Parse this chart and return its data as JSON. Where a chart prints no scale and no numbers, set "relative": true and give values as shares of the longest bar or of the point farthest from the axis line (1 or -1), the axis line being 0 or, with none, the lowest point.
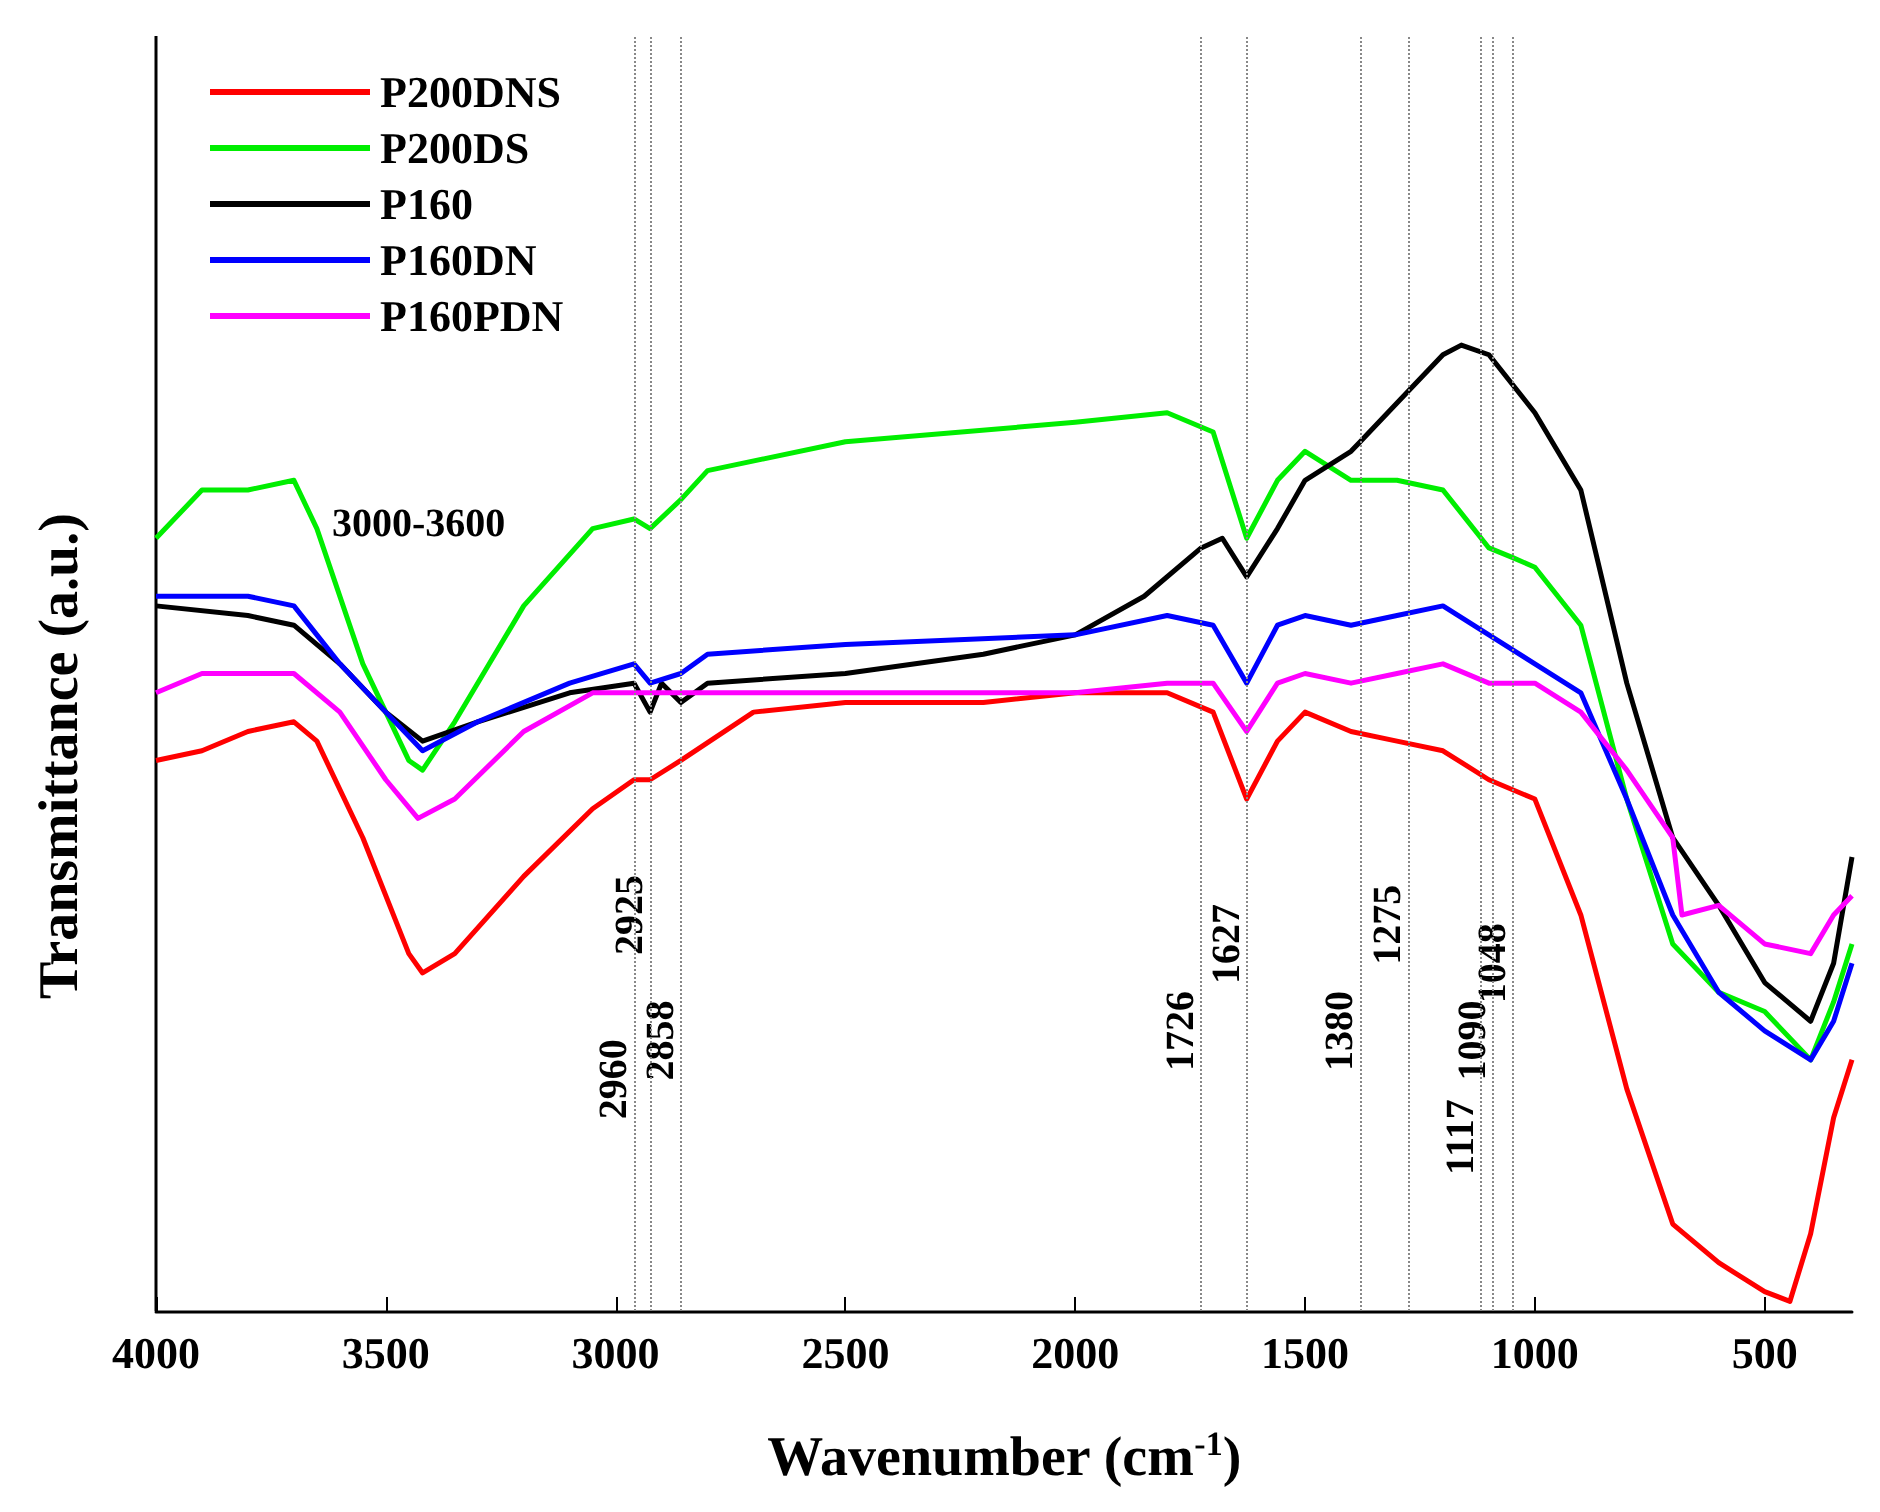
{
  "chart_data": {
    "type": "line",
    "relative": true,
    "xlabel": "Wavenumber (cm$^{-1}$)",
    "ylabel": "Transmittance (a.u.)",
    "xlim": [
      4000,
      310
    ],
    "xticks": [
      4000,
      3500,
      3000,
      2500,
      2000,
      1500,
      1000,
      500
    ],
    "legend": "top left",
    "grid": false,
    "marker": "none",
    "series": [
      {
        "name": "P200DNS",
        "color": "#ff0000",
        "x": [
          4000,
          3900,
          3800,
          3700,
          3650,
          3550,
          3450,
          3420,
          3350,
          3200,
          3050,
          2960,
          2925,
          2858,
          2700,
          2500,
          2200,
          2000,
          1800,
          1700,
          1627,
          1560,
          1500,
          1400,
          1300,
          1200,
          1100,
          1000,
          900,
          800,
          700,
          600,
          500,
          445,
          400,
          350,
          310
        ],
        "values": [
          0.57,
          0.58,
          0.6,
          0.61,
          0.59,
          0.49,
          0.37,
          0.35,
          0.37,
          0.45,
          0.52,
          0.55,
          0.55,
          0.57,
          0.62,
          0.63,
          0.63,
          0.64,
          0.64,
          0.62,
          0.53,
          0.59,
          0.62,
          0.6,
          0.59,
          0.58,
          0.55,
          0.53,
          0.41,
          0.23,
          0.09,
          0.05,
          0.02,
          0.01,
          0.08,
          0.2,
          0.26
        ]
      },
      {
        "name": "P200DS",
        "color": "#00ee00",
        "x": [
          4000,
          3900,
          3800,
          3700,
          3650,
          3550,
          3450,
          3420,
          3350,
          3200,
          3050,
          2960,
          2925,
          2858,
          2800,
          2500,
          2000,
          1800,
          1700,
          1627,
          1560,
          1500,
          1400,
          1300,
          1200,
          1100,
          1048,
          1000,
          900,
          800,
          700,
          600,
          500,
          400,
          350,
          310
        ],
        "values": [
          0.8,
          0.85,
          0.85,
          0.86,
          0.81,
          0.67,
          0.57,
          0.56,
          0.61,
          0.73,
          0.81,
          0.82,
          0.81,
          0.84,
          0.87,
          0.9,
          0.92,
          0.93,
          0.91,
          0.8,
          0.86,
          0.89,
          0.86,
          0.86,
          0.85,
          0.79,
          0.78,
          0.77,
          0.71,
          0.53,
          0.38,
          0.33,
          0.31,
          0.26,
          0.32,
          0.38
        ]
      },
      {
        "name": "P160",
        "color": "#000000",
        "x": [
          4000,
          3800,
          3700,
          3600,
          3500,
          3420,
          3300,
          3100,
          2960,
          2925,
          2900,
          2858,
          2800,
          2500,
          2200,
          2000,
          1850,
          1726,
          1680,
          1627,
          1560,
          1500,
          1400,
          1380,
          1300,
          1200,
          1160,
          1100,
          1000,
          900,
          800,
          700,
          600,
          500,
          400,
          350,
          310
        ],
        "values": [
          0.73,
          0.72,
          0.71,
          0.67,
          0.62,
          0.59,
          0.61,
          0.64,
          0.65,
          0.62,
          0.65,
          0.63,
          0.65,
          0.66,
          0.68,
          0.7,
          0.74,
          0.79,
          0.8,
          0.76,
          0.81,
          0.86,
          0.89,
          0.9,
          0.94,
          0.99,
          1,
          0.99,
          0.93,
          0.85,
          0.65,
          0.49,
          0.42,
          0.34,
          0.3,
          0.36,
          0.47
        ]
      },
      {
        "name": "P160DN",
        "color": "#0000ff",
        "x": [
          4000,
          3800,
          3700,
          3600,
          3500,
          3420,
          3300,
          3100,
          2960,
          2925,
          2858,
          2800,
          2500,
          2000,
          1800,
          1700,
          1627,
          1560,
          1500,
          1400,
          1300,
          1200,
          1100,
          1000,
          900,
          800,
          700,
          600,
          500,
          400,
          350,
          310
        ],
        "values": [
          0.74,
          0.74,
          0.73,
          0.67,
          0.62,
          0.58,
          0.61,
          0.65,
          0.67,
          0.65,
          0.66,
          0.68,
          0.69,
          0.7,
          0.72,
          0.71,
          0.65,
          0.71,
          0.72,
          0.71,
          0.72,
          0.73,
          0.7,
          0.67,
          0.64,
          0.53,
          0.41,
          0.33,
          0.29,
          0.26,
          0.3,
          0.36
        ]
      },
      {
        "name": "P160PDN",
        "color": "#ff00ff",
        "x": [
          4000,
          3900,
          3800,
          3700,
          3600,
          3500,
          3430,
          3350,
          3200,
          3050,
          2960,
          2800,
          2500,
          2000,
          1800,
          1700,
          1627,
          1560,
          1500,
          1400,
          1300,
          1200,
          1100,
          1000,
          900,
          800,
          700,
          680,
          600,
          500,
          400,
          350,
          310
        ],
        "values": [
          0.64,
          0.66,
          0.66,
          0.66,
          0.62,
          0.55,
          0.51,
          0.53,
          0.6,
          0.64,
          0.64,
          0.64,
          0.64,
          0.64,
          0.65,
          0.65,
          0.6,
          0.65,
          0.66,
          0.65,
          0.66,
          0.67,
          0.65,
          0.65,
          0.62,
          0.56,
          0.49,
          0.41,
          0.42,
          0.38,
          0.37,
          0.41,
          0.43
        ]
      }
    ],
    "ref_lines": [
      {
        "axis": "x",
        "value": 2960,
        "color": "#888888",
        "line_style": "dotted"
      },
      {
        "axis": "x",
        "value": 2925,
        "color": "#888888",
        "line_style": "dotted"
      },
      {
        "axis": "x",
        "value": 2858,
        "color": "#888888",
        "line_style": "dotted"
      },
      {
        "axis": "x",
        "value": 1726,
        "color": "#888888",
        "line_style": "dotted"
      },
      {
        "axis": "x",
        "value": 1627,
        "color": "#888888",
        "line_style": "dotted"
      },
      {
        "axis": "x",
        "value": 1380,
        "color": "#888888",
        "line_style": "dotted"
      },
      {
        "axis": "x",
        "value": 1275,
        "color": "#888888",
        "line_style": "dotted"
      },
      {
        "axis": "x",
        "value": 1117,
        "color": "#888888",
        "line_style": "dotted"
      },
      {
        "axis": "x",
        "value": 1090,
        "color": "#888888",
        "line_style": "dotted"
      },
      {
        "axis": "x",
        "value": 1048,
        "color": "#888888",
        "line_style": "dotted"
      }
    ],
    "annotations": [
      "3000-3600",
      {
        "text": "2960",
        "x": 2960,
        "y": 0.24
      },
      {
        "text": "2925",
        "x": 2925,
        "y": 0.41
      },
      {
        "text": "2858",
        "x": 2858,
        "y": 0.28
      },
      {
        "text": "1726",
        "x": 1726,
        "y": 0.29
      },
      {
        "text": "1627",
        "x": 1627,
        "y": 0.38
      },
      {
        "text": "1380",
        "x": 1380,
        "y": 0.29
      },
      {
        "text": "1275",
        "x": 1275,
        "y": 0.4
      },
      {
        "text": "1117",
        "x": 1117,
        "y": 0.18
      },
      {
        "text": "1090",
        "x": 1090,
        "y": 0.28
      },
      {
        "text": "1048",
        "x": 1048,
        "y": 0.36
      }
    ]
  }
}
